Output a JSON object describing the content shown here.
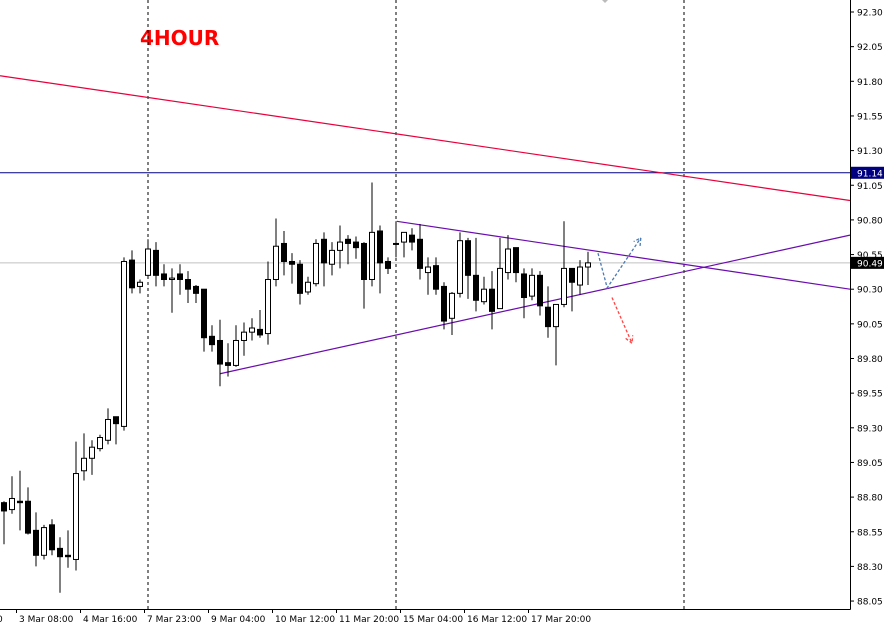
{
  "chart_data": {
    "type": "candlestick",
    "timeframe_label": "4HOUR",
    "ylim": [
      88.0,
      92.39
    ],
    "y_ticks": [
      "92.30",
      "92.05",
      "91.80",
      "91.55",
      "91.30",
      "91.05",
      "90.80",
      "90.55",
      "90.30",
      "90.05",
      "89.80",
      "89.55",
      "89.30",
      "89.05",
      "88.80",
      "88.55",
      "88.30",
      "88.05"
    ],
    "x_ticks": [
      {
        "index": -6,
        "label": "0"
      },
      {
        "index": 2,
        "label": "3 Mar 08:00"
      },
      {
        "index": 10,
        "label": "4 Mar 16:00"
      },
      {
        "index": 18,
        "label": "7 Mar 23:00"
      },
      {
        "index": 26,
        "label": "9 Mar 04:00"
      },
      {
        "index": 34,
        "label": "10 Mar 12:00"
      },
      {
        "index": 42,
        "label": "11 Mar 20:00"
      },
      {
        "index": 50,
        "label": "15 Mar 04:00"
      },
      {
        "index": 58,
        "label": "16 Mar 12:00"
      },
      {
        "index": 66,
        "label": "17 Mar 20:00"
      }
    ],
    "candles_ohlc": [
      [
        88.76,
        88.77,
        88.46,
        88.7
      ],
      [
        88.71,
        88.95,
        88.68,
        88.79
      ],
      [
        88.77,
        88.99,
        88.56,
        88.76
      ],
      [
        88.77,
        88.87,
        88.53,
        88.54
      ],
      [
        88.56,
        88.69,
        88.3,
        88.38
      ],
      [
        88.38,
        88.6,
        88.35,
        88.58
      ],
      [
        88.6,
        88.64,
        88.38,
        88.42
      ],
      [
        88.43,
        88.51,
        88.11,
        88.37
      ],
      [
        88.38,
        88.56,
        88.29,
        88.37
      ],
      [
        88.35,
        89.2,
        88.27,
        88.97
      ],
      [
        88.99,
        89.26,
        88.92,
        89.08
      ],
      [
        89.08,
        89.21,
        88.96,
        89.16
      ],
      [
        89.15,
        89.25,
        89.13,
        89.23
      ],
      [
        89.21,
        89.44,
        89.18,
        89.36
      ],
      [
        89.38,
        89.38,
        89.18,
        89.33
      ],
      [
        89.31,
        90.53,
        89.28,
        90.5
      ],
      [
        90.51,
        90.58,
        90.27,
        90.31
      ],
      [
        90.32,
        90.37,
        90.27,
        90.35
      ],
      [
        90.4,
        90.66,
        90.38,
        90.59
      ],
      [
        90.58,
        90.64,
        90.32,
        90.4
      ],
      [
        90.41,
        90.48,
        90.32,
        90.37
      ],
      [
        90.37,
        90.45,
        90.13,
        90.38
      ],
      [
        90.41,
        90.48,
        90.26,
        90.37
      ],
      [
        90.37,
        90.43,
        90.2,
        90.3
      ],
      [
        90.32,
        90.33,
        90.2,
        90.27
      ],
      [
        90.3,
        90.3,
        89.85,
        89.95
      ],
      [
        89.96,
        90.04,
        89.85,
        89.9
      ],
      [
        89.93,
        90.08,
        89.6,
        89.76
      ],
      [
        89.77,
        89.91,
        89.67,
        89.75
      ],
      [
        89.75,
        90.04,
        89.74,
        89.93
      ],
      [
        89.93,
        90.06,
        89.82,
        89.99
      ],
      [
        89.99,
        90.09,
        89.93,
        90.02
      ],
      [
        90.01,
        90.15,
        89.95,
        89.97
      ],
      [
        89.98,
        90.5,
        89.9,
        90.37
      ],
      [
        90.37,
        90.81,
        90.32,
        90.61
      ],
      [
        90.63,
        90.72,
        90.4,
        90.5
      ],
      [
        90.5,
        90.56,
        90.34,
        90.48
      ],
      [
        90.48,
        90.51,
        90.19,
        90.27
      ],
      [
        90.28,
        90.39,
        90.26,
        90.35
      ],
      [
        90.34,
        90.66,
        90.32,
        90.63
      ],
      [
        90.66,
        90.71,
        90.32,
        90.49
      ],
      [
        90.48,
        90.64,
        90.4,
        90.58
      ],
      [
        90.58,
        90.76,
        90.45,
        90.64
      ],
      [
        90.66,
        90.69,
        90.48,
        90.63
      ],
      [
        90.64,
        90.68,
        90.52,
        90.6
      ],
      [
        90.63,
        90.64,
        90.16,
        90.37
      ],
      [
        90.37,
        91.07,
        90.32,
        90.71
      ],
      [
        90.72,
        90.76,
        90.27,
        90.49
      ],
      [
        90.5,
        90.53,
        90.41,
        90.45
      ],
      [
        90.63,
        90.79,
        90.53,
        90.63
      ],
      [
        90.64,
        90.71,
        90.53,
        90.71
      ],
      [
        90.69,
        90.74,
        90.58,
        90.64
      ],
      [
        90.66,
        90.77,
        90.37,
        90.45
      ],
      [
        90.42,
        90.53,
        90.26,
        90.46
      ],
      [
        90.47,
        90.53,
        90.26,
        90.3
      ],
      [
        90.32,
        90.35,
        90.01,
        90.07
      ],
      [
        90.09,
        90.28,
        89.97,
        90.27
      ],
      [
        90.27,
        90.71,
        90.24,
        90.65
      ],
      [
        90.65,
        90.67,
        90.23,
        90.4
      ],
      [
        90.4,
        90.67,
        90.14,
        90.22
      ],
      [
        90.21,
        90.39,
        90.19,
        90.3
      ],
      [
        90.3,
        90.43,
        90.01,
        90.14
      ],
      [
        90.16,
        90.67,
        90.16,
        90.45
      ],
      [
        90.42,
        90.69,
        90.37,
        90.59
      ],
      [
        90.6,
        90.6,
        90.35,
        90.42
      ],
      [
        90.41,
        90.45,
        90.09,
        90.24
      ],
      [
        90.25,
        90.45,
        90.22,
        90.4
      ],
      [
        90.4,
        90.43,
        90.11,
        90.18
      ],
      [
        90.17,
        90.32,
        89.95,
        90.03
      ],
      [
        90.03,
        90.19,
        89.75,
        90.19
      ],
      [
        90.19,
        90.79,
        90.17,
        90.45
      ],
      [
        90.45,
        90.45,
        90.14,
        90.35
      ],
      [
        90.33,
        90.51,
        90.26,
        90.46
      ],
      [
        90.46,
        90.57,
        90.33,
        90.49
      ]
    ],
    "horizontal_lines": [
      {
        "price": 91.14,
        "label": "91.14",
        "color": "#000080"
      },
      {
        "price": 90.49,
        "label": "90.49",
        "color": "#c0c0c0",
        "label_bg": "#000000"
      }
    ],
    "period_separators": [
      18,
      49,
      85
    ],
    "trendlines": [
      {
        "from": [
          -0.5,
          91.84
        ],
        "to": [
          105.75,
          90.94
        ],
        "color": "#e8003c"
      },
      {
        "from": [
          49.1,
          90.79
        ],
        "to": [
          105.75,
          90.3
        ],
        "color": "#6a0dad"
      },
      {
        "from": [
          27,
          89.69
        ],
        "to": [
          105.75,
          90.69
        ],
        "color": "#6a0dad"
      }
    ],
    "projection_arrows": [
      {
        "points": [
          [
            74.25,
            90.56
          ],
          [
            75.4,
            90.31
          ],
          [
            79.6,
            90.67
          ]
        ],
        "color": "#4a7ab5"
      },
      {
        "points": [
          [
            76,
            90.24
          ],
          [
            78.5,
            89.91
          ]
        ],
        "color": "#ff4444"
      }
    ],
    "colors": {
      "bull_body": "#ffffff",
      "bear_body": "#000000",
      "outline": "#000000",
      "background": "#ffffff"
    }
  }
}
